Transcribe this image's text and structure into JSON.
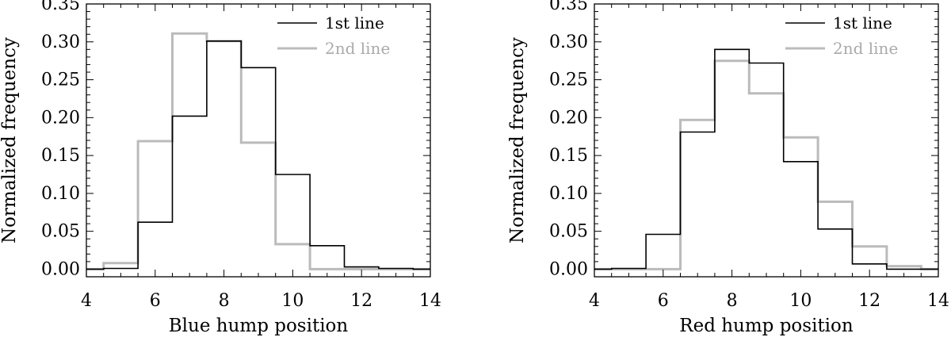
{
  "chart_data": [
    {
      "type": "histogram",
      "xlabel": "Blue hump position",
      "ylabel": "Normalized frequency",
      "xlim": [
        4,
        14
      ],
      "ylim": [
        -0.01,
        0.35
      ],
      "xticks": [
        4,
        6,
        8,
        10,
        12,
        14
      ],
      "yticks": [
        0.0,
        0.05,
        0.1,
        0.15,
        0.2,
        0.25,
        0.3,
        0.35
      ],
      "bin_edges": [
        3.5,
        4.5,
        5.5,
        6.5,
        7.5,
        8.5,
        9.5,
        10.5,
        11.5,
        12.5,
        13.5,
        14.5
      ],
      "legend_position": "top-right",
      "grid": false,
      "series": [
        {
          "name": "1st line",
          "color": "#000000",
          "values": [
            0.0,
            0.001,
            0.062,
            0.202,
            0.301,
            0.266,
            0.125,
            0.031,
            0.003,
            0.001,
            0.0
          ]
        },
        {
          "name": "2nd line",
          "color": "#bbbbbb",
          "values": [
            0.0,
            0.008,
            0.169,
            0.311,
            0.301,
            0.167,
            0.033,
            0.0,
            0.0,
            0.0,
            0.0
          ]
        }
      ]
    },
    {
      "type": "histogram",
      "xlabel": "Red hump position",
      "ylabel": "Normalized frequency",
      "xlim": [
        4,
        14
      ],
      "ylim": [
        -0.01,
        0.35
      ],
      "xticks": [
        4,
        6,
        8,
        10,
        12,
        14
      ],
      "yticks": [
        0.0,
        0.05,
        0.1,
        0.15,
        0.2,
        0.25,
        0.3,
        0.35
      ],
      "bin_edges": [
        3.5,
        4.5,
        5.5,
        6.5,
        7.5,
        8.5,
        9.5,
        10.5,
        11.5,
        12.5,
        13.5,
        14.5
      ],
      "legend_position": "top-right",
      "grid": false,
      "series": [
        {
          "name": "1st line",
          "color": "#000000",
          "values": [
            0.0,
            0.001,
            0.046,
            0.181,
            0.29,
            0.272,
            0.142,
            0.053,
            0.007,
            0.0,
            0.0
          ]
        },
        {
          "name": "2nd line",
          "color": "#bbbbbb",
          "values": [
            0.0,
            0.0,
            0.0,
            0.197,
            0.275,
            0.232,
            0.174,
            0.089,
            0.03,
            0.004,
            0.0
          ]
        }
      ]
    }
  ]
}
